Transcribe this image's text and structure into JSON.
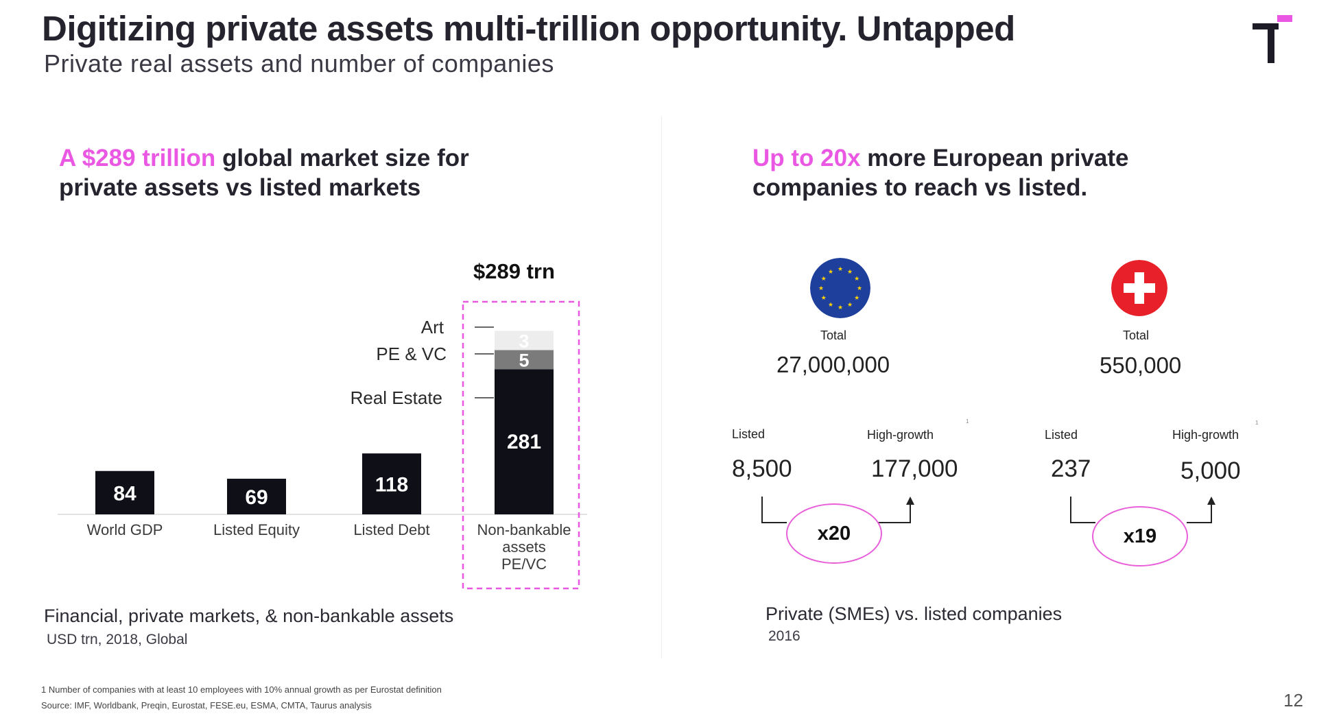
{
  "header": {
    "title": "Digitizing private assets multi-trillion opportunity. Untapped",
    "subtitle": "Private real assets and number of companies"
  },
  "colors": {
    "accent": "#ea57e2",
    "bar_dark": "#0f0f18",
    "bar_mid": "#7b7b7b",
    "bar_light": "#ededed",
    "eu_blue": "#1f3f9c",
    "eu_star": "#ffd200",
    "swiss_red": "#e8202a"
  },
  "left": {
    "headline_accent": "A $289 trillion",
    "headline_rest_1": " global market size for",
    "headline_line_2": "private assets vs listed markets",
    "total_label": "$289 trn",
    "caption": "Financial, private markets, & non-bankable assets",
    "subcaption": "USD trn, 2018, Global"
  },
  "chart_data": {
    "type": "bar",
    "stacked": true,
    "title": "Financial, private markets, & non-bankable assets",
    "units": "USD trn, 2018, Global",
    "categories": [
      "World GDP",
      "Listed Equity",
      "Listed Debt",
      "Non-bankable assets PE/VC"
    ],
    "values": [
      84,
      69,
      118,
      289
    ],
    "stack": {
      "category": "Non-bankable assets PE/VC",
      "segments": [
        {
          "name": "Real Estate",
          "value": 281
        },
        {
          "name": "PE & VC",
          "value": 5
        },
        {
          "name": "Art",
          "value": 3
        }
      ]
    },
    "total_annotation": "$289 trn"
  },
  "right": {
    "headline_accent": "Up to 20x",
    "headline_rest_1": " more European private",
    "headline_line_2": "companies to reach vs listed.",
    "eu": {
      "total_label": "Total",
      "total_value": "27,000,000",
      "listed_label": "Listed",
      "listed_value": "8,500",
      "growth_label": "High-growth",
      "growth_value": "177,000",
      "footnote_mark": "1",
      "multiplier": "x20",
      "flag_icon": "eu-flag-icon"
    },
    "ch": {
      "total_label": "Total",
      "total_value": "550,000",
      "listed_label": "Listed",
      "listed_value": "237",
      "growth_label": "High-growth",
      "growth_value": "5,000",
      "footnote_mark": "1",
      "multiplier": "x19",
      "flag_icon": "swiss-flag-icon"
    },
    "caption": "Private (SMEs) vs. listed companies",
    "subcaption": "2016"
  },
  "footer": {
    "footnote": "1 Number of companies with at least 10 employees with 10% annual growth as per Eurostat definition",
    "source": "Source: IMF, Worldbank, Preqin, Eurostat, FESE.eu, ESMA, CMTA, Taurus analysis",
    "page_number": "12"
  }
}
